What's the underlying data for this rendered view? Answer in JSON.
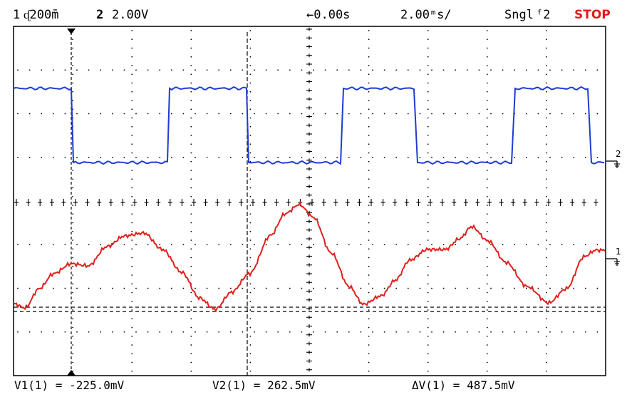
{
  "header": {
    "ch1_number": "1",
    "ch1_scale": "ᶑ200m̄",
    "ch2_number": "2",
    "ch2_scale": "2.00V",
    "delay": "←0.00s",
    "timebase": "2.00ᵐs/",
    "trigger_mode": "Sngl",
    "trigger_source": "ᶠ2",
    "run_state": "STOP"
  },
  "markers": {
    "ch2": "2",
    "ch1": "1"
  },
  "measurements": {
    "v1": "V1(1) = -225.0mV",
    "v2": "V2(1) = 262.5mV",
    "dv": "ΔV(1) = 487.5mV"
  },
  "colors": {
    "ch1": "#e0201c",
    "ch2": "#1f3bd1",
    "background": "#ffffff",
    "grid": "#000000"
  },
  "icons": [
    "trigger-position-marker-icon",
    "ch1-ground-icon",
    "ch2-ground-icon"
  ]
}
